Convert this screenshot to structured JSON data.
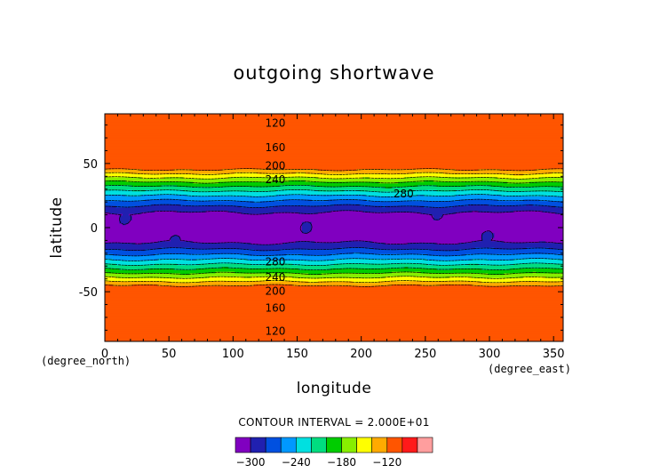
{
  "chart_data": {
    "type": "heatmap",
    "title": "outgoing shortwave",
    "xlabel": "longitude",
    "ylabel": "latitude",
    "x_unit": "(degree_east)",
    "y_unit": "(degree_north)",
    "xlim": [
      0,
      357.5
    ],
    "ylim": [
      -88.75,
      88.75
    ],
    "xticks": [
      0,
      50,
      100,
      150,
      200,
      250,
      300,
      350
    ],
    "yticks": [
      -50,
      0,
      50
    ],
    "contour_interval_text": "CONTOUR INTERVAL = 2.000E+01",
    "levels": [
      -300,
      -280,
      -260,
      -240,
      -220,
      -200,
      -180,
      -160,
      -140,
      -120
    ],
    "colors": [
      "#8000c0",
      "#2020b0",
      "#0050e0",
      "#0098ff",
      "#00e0e0",
      "#00dd80",
      "#00cc00",
      "#88ee00",
      "#ffff00",
      "#ffaa00",
      "#ff5500",
      "#ff1a1a",
      "#ff9e9e"
    ],
    "colorbar_labels": [
      "−300",
      "−240",
      "−180",
      "−120"
    ],
    "contour_labels": [
      {
        "text": "120",
        "lon": 133,
        "lat": 82
      },
      {
        "text": "160",
        "lon": 133,
        "lat": 63
      },
      {
        "text": "200",
        "lon": 133,
        "lat": 49
      },
      {
        "text": "240",
        "lon": 133,
        "lat": 38
      },
      {
        "text": "280",
        "lon": 233,
        "lat": 27
      },
      {
        "text": "280",
        "lon": 133,
        "lat": -26
      },
      {
        "text": "240",
        "lon": 133,
        "lat": -38
      },
      {
        "text": "200",
        "lon": 133,
        "lat": -49
      },
      {
        "text": "160",
        "lon": 133,
        "lat": -62
      },
      {
        "text": "120",
        "lon": 133,
        "lat": -80
      }
    ]
  }
}
